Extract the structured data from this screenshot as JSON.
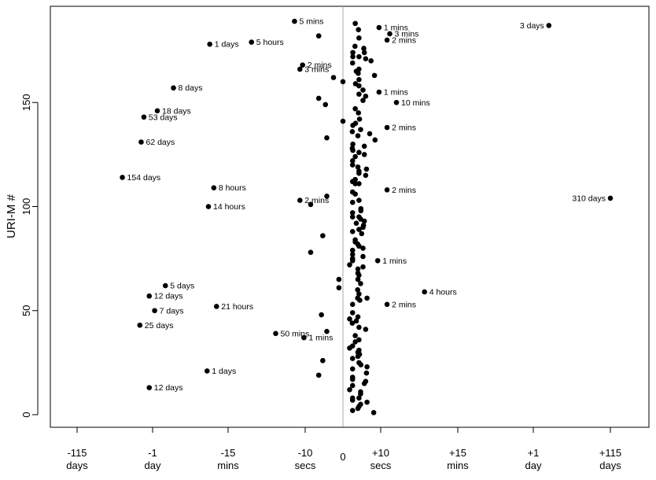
{
  "chart_data": {
    "type": "scatter",
    "title": "",
    "xlabel": "",
    "ylabel": "URI-M #",
    "x_scale": "symmetric piecewise-log time offset (negative = before, positive = after)",
    "xlim_label_range": [
      "-115 days",
      "+115 days"
    ],
    "ylim": [
      0,
      190
    ],
    "y_ticks": [
      0,
      50,
      100,
      150
    ],
    "x_ticks": [
      {
        "line1": "-115",
        "line2": "days"
      },
      {
        "line1": "-1",
        "line2": "day"
      },
      {
        "line1": "-15",
        "line2": "mins"
      },
      {
        "line1": "-10",
        "line2": "secs"
      },
      {
        "line1": "0",
        "line2": ""
      },
      {
        "line1": "+10",
        "line2": "secs"
      },
      {
        "line1": "+15",
        "line2": "mins"
      },
      {
        "line1": "+1",
        "line2": "day"
      },
      {
        "line1": "+115",
        "line2": "days"
      }
    ],
    "zero_line": true,
    "marker_color": "#000000",
    "points": [
      {
        "s": -0.18,
        "y": 189,
        "label": "5 mins"
      },
      {
        "s": -0.09,
        "y": 182
      },
      {
        "s": -0.495,
        "y": 178,
        "label": "1 days"
      },
      {
        "s": -0.34,
        "y": 179,
        "label": "5 hours"
      },
      {
        "s": -0.15,
        "y": 168,
        "label": "2 mins"
      },
      {
        "s": -0.16,
        "y": 166,
        "label": "3 mins"
      },
      {
        "s": -0.035,
        "y": 162
      },
      {
        "s": 0.0,
        "y": 160
      },
      {
        "s": -0.63,
        "y": 157,
        "label": "8 days"
      },
      {
        "s": -0.09,
        "y": 152
      },
      {
        "s": -0.065,
        "y": 149
      },
      {
        "s": -0.69,
        "y": 146,
        "label": "18 days"
      },
      {
        "s": -0.74,
        "y": 143,
        "label": "53 days"
      },
      {
        "s": 0.0,
        "y": 141
      },
      {
        "s": -0.75,
        "y": 131,
        "label": "62 days"
      },
      {
        "s": -0.06,
        "y": 133
      },
      {
        "s": -0.82,
        "y": 114,
        "label": "154 days"
      },
      {
        "s": -0.48,
        "y": 109,
        "label": "8 hours"
      },
      {
        "s": -0.16,
        "y": 103,
        "label": "2 mins"
      },
      {
        "s": -0.12,
        "y": 101
      },
      {
        "s": -0.06,
        "y": 105
      },
      {
        "s": -0.5,
        "y": 100,
        "label": "14 hours"
      },
      {
        "s": -0.075,
        "y": 86
      },
      {
        "s": -0.12,
        "y": 78
      },
      {
        "s": -0.015,
        "y": 65
      },
      {
        "s": -0.015,
        "y": 61
      },
      {
        "s": -0.66,
        "y": 62,
        "label": "5 days"
      },
      {
        "s": -0.72,
        "y": 57,
        "label": "12 days"
      },
      {
        "s": -0.47,
        "y": 52,
        "label": "21 hours"
      },
      {
        "s": -0.7,
        "y": 50,
        "label": "7 days"
      },
      {
        "s": -0.08,
        "y": 48
      },
      {
        "s": -0.755,
        "y": 43,
        "label": "25 days"
      },
      {
        "s": -0.06,
        "y": 40
      },
      {
        "s": -0.25,
        "y": 39,
        "label": "50 mins"
      },
      {
        "s": -0.145,
        "y": 37,
        "label": "1 mins"
      },
      {
        "s": -0.075,
        "y": 26
      },
      {
        "s": -0.09,
        "y": 19
      },
      {
        "s": -0.505,
        "y": 21,
        "label": "1 days"
      },
      {
        "s": -0.72,
        "y": 13,
        "label": "12 days"
      },
      {
        "s": 0.135,
        "y": 186,
        "label": "1 mins"
      },
      {
        "s": 0.77,
        "y": 187,
        "label": "3 days"
      },
      {
        "s": 0.175,
        "y": 183,
        "label": "3 mins"
      },
      {
        "s": 0.165,
        "y": 180,
        "label": "2 mins"
      },
      {
        "s": 0.135,
        "y": 155,
        "label": "1 mins"
      },
      {
        "s": 0.2,
        "y": 150,
        "label": "10 mins"
      },
      {
        "s": 0.165,
        "y": 138,
        "label": "2 mins"
      },
      {
        "s": 0.165,
        "y": 108,
        "label": "2 mins"
      },
      {
        "s": 1.0,
        "y": 104,
        "label": "310 days"
      },
      {
        "s": 0.13,
        "y": 74,
        "label": "1 mins"
      },
      {
        "s": 0.305,
        "y": 59,
        "label": "4 hours"
      },
      {
        "s": 0.165,
        "y": 53,
        "label": "2 mins"
      },
      {
        "s": 0.046,
        "y": 188
      },
      {
        "s": 0.058,
        "y": 185
      },
      {
        "s": 0.06,
        "y": 181
      },
      {
        "s": 0.045,
        "y": 177
      },
      {
        "s": 0.037,
        "y": 174
      },
      {
        "s": 0.037,
        "y": 172
      },
      {
        "s": 0.06,
        "y": 172
      },
      {
        "s": 0.078,
        "y": 176
      },
      {
        "s": 0.08,
        "y": 174
      },
      {
        "s": 0.105,
        "y": 170
      },
      {
        "s": 0.118,
        "y": 163
      },
      {
        "s": 0.085,
        "y": 171
      },
      {
        "s": 0.036,
        "y": 169
      },
      {
        "s": 0.05,
        "y": 165
      },
      {
        "s": 0.057,
        "y": 164
      },
      {
        "s": 0.06,
        "y": 161
      },
      {
        "s": 0.06,
        "y": 166
      },
      {
        "s": 0.047,
        "y": 159
      },
      {
        "s": 0.06,
        "y": 158
      },
      {
        "s": 0.075,
        "y": 156
      },
      {
        "s": 0.06,
        "y": 154
      },
      {
        "s": 0.085,
        "y": 153
      },
      {
        "s": 0.075,
        "y": 151
      },
      {
        "s": 0.046,
        "y": 147
      },
      {
        "s": 0.058,
        "y": 145
      },
      {
        "s": 0.062,
        "y": 142
      },
      {
        "s": 0.047,
        "y": 140
      },
      {
        "s": 0.037,
        "y": 139
      },
      {
        "s": 0.035,
        "y": 136
      },
      {
        "s": 0.066,
        "y": 137
      },
      {
        "s": 0.056,
        "y": 134
      },
      {
        "s": 0.1,
        "y": 135
      },
      {
        "s": 0.12,
        "y": 132
      },
      {
        "s": 0.037,
        "y": 130
      },
      {
        "s": 0.035,
        "y": 128
      },
      {
        "s": 0.037,
        "y": 127
      },
      {
        "s": 0.06,
        "y": 126
      },
      {
        "s": 0.08,
        "y": 129
      },
      {
        "s": 0.08,
        "y": 125
      },
      {
        "s": 0.046,
        "y": 124
      },
      {
        "s": 0.036,
        "y": 122
      },
      {
        "s": 0.036,
        "y": 120
      },
      {
        "s": 0.056,
        "y": 119
      },
      {
        "s": 0.06,
        "y": 117
      },
      {
        "s": 0.06,
        "y": 116
      },
      {
        "s": 0.088,
        "y": 118
      },
      {
        "s": 0.085,
        "y": 115
      },
      {
        "s": 0.046,
        "y": 113
      },
      {
        "s": 0.036,
        "y": 112
      },
      {
        "s": 0.046,
        "y": 111
      },
      {
        "s": 0.06,
        "y": 111
      },
      {
        "s": 0.036,
        "y": 107
      },
      {
        "s": 0.046,
        "y": 106
      },
      {
        "s": 0.06,
        "y": 103
      },
      {
        "s": 0.036,
        "y": 102
      },
      {
        "s": 0.067,
        "y": 99
      },
      {
        "s": 0.067,
        "y": 98
      },
      {
        "s": 0.036,
        "y": 97
      },
      {
        "s": 0.036,
        "y": 95
      },
      {
        "s": 0.06,
        "y": 95
      },
      {
        "s": 0.066,
        "y": 94
      },
      {
        "s": 0.08,
        "y": 93
      },
      {
        "s": 0.05,
        "y": 92
      },
      {
        "s": 0.077,
        "y": 91
      },
      {
        "s": 0.075,
        "y": 90
      },
      {
        "s": 0.06,
        "y": 89
      },
      {
        "s": 0.036,
        "y": 88
      },
      {
        "s": 0.07,
        "y": 87
      },
      {
        "s": 0.046,
        "y": 84
      },
      {
        "s": 0.046,
        "y": 83
      },
      {
        "s": 0.055,
        "y": 82
      },
      {
        "s": 0.06,
        "y": 81
      },
      {
        "s": 0.075,
        "y": 80
      },
      {
        "s": 0.036,
        "y": 79
      },
      {
        "s": 0.036,
        "y": 77
      },
      {
        "s": 0.075,
        "y": 76
      },
      {
        "s": 0.036,
        "y": 75
      },
      {
        "s": 0.036,
        "y": 74
      },
      {
        "s": 0.025,
        "y": 72
      },
      {
        "s": 0.075,
        "y": 71
      },
      {
        "s": 0.056,
        "y": 70
      },
      {
        "s": 0.056,
        "y": 68
      },
      {
        "s": 0.06,
        "y": 67
      },
      {
        "s": 0.056,
        "y": 65
      },
      {
        "s": 0.066,
        "y": 63
      },
      {
        "s": 0.055,
        "y": 60
      },
      {
        "s": 0.06,
        "y": 58
      },
      {
        "s": 0.055,
        "y": 56
      },
      {
        "s": 0.09,
        "y": 56
      },
      {
        "s": 0.063,
        "y": 55
      },
      {
        "s": 0.036,
        "y": 53
      },
      {
        "s": 0.036,
        "y": 49
      },
      {
        "s": 0.056,
        "y": 47
      },
      {
        "s": 0.025,
        "y": 46
      },
      {
        "s": 0.035,
        "y": 44
      },
      {
        "s": 0.05,
        "y": 45
      },
      {
        "s": 0.06,
        "y": 42
      },
      {
        "s": 0.085,
        "y": 41
      },
      {
        "s": 0.046,
        "y": 38
      },
      {
        "s": 0.06,
        "y": 36
      },
      {
        "s": 0.046,
        "y": 35
      },
      {
        "s": 0.036,
        "y": 33
      },
      {
        "s": 0.025,
        "y": 32
      },
      {
        "s": 0.06,
        "y": 31
      },
      {
        "s": 0.056,
        "y": 30
      },
      {
        "s": 0.056,
        "y": 28
      },
      {
        "s": 0.062,
        "y": 29
      },
      {
        "s": 0.036,
        "y": 27
      },
      {
        "s": 0.06,
        "y": 25
      },
      {
        "s": 0.067,
        "y": 24
      },
      {
        "s": 0.09,
        "y": 23
      },
      {
        "s": 0.036,
        "y": 22
      },
      {
        "s": 0.088,
        "y": 20
      },
      {
        "s": 0.036,
        "y": 18
      },
      {
        "s": 0.036,
        "y": 17
      },
      {
        "s": 0.085,
        "y": 16
      },
      {
        "s": 0.08,
        "y": 15
      },
      {
        "s": 0.036,
        "y": 14
      },
      {
        "s": 0.025,
        "y": 12
      },
      {
        "s": 0.066,
        "y": 11
      },
      {
        "s": 0.066,
        "y": 10
      },
      {
        "s": 0.036,
        "y": 8
      },
      {
        "s": 0.06,
        "y": 8
      },
      {
        "s": 0.036,
        "y": 7
      },
      {
        "s": 0.09,
        "y": 6
      },
      {
        "s": 0.066,
        "y": 5
      },
      {
        "s": 0.06,
        "y": 4
      },
      {
        "s": 0.056,
        "y": 3
      },
      {
        "s": 0.036,
        "y": 2
      },
      {
        "s": 0.115,
        "y": 1
      }
    ]
  }
}
